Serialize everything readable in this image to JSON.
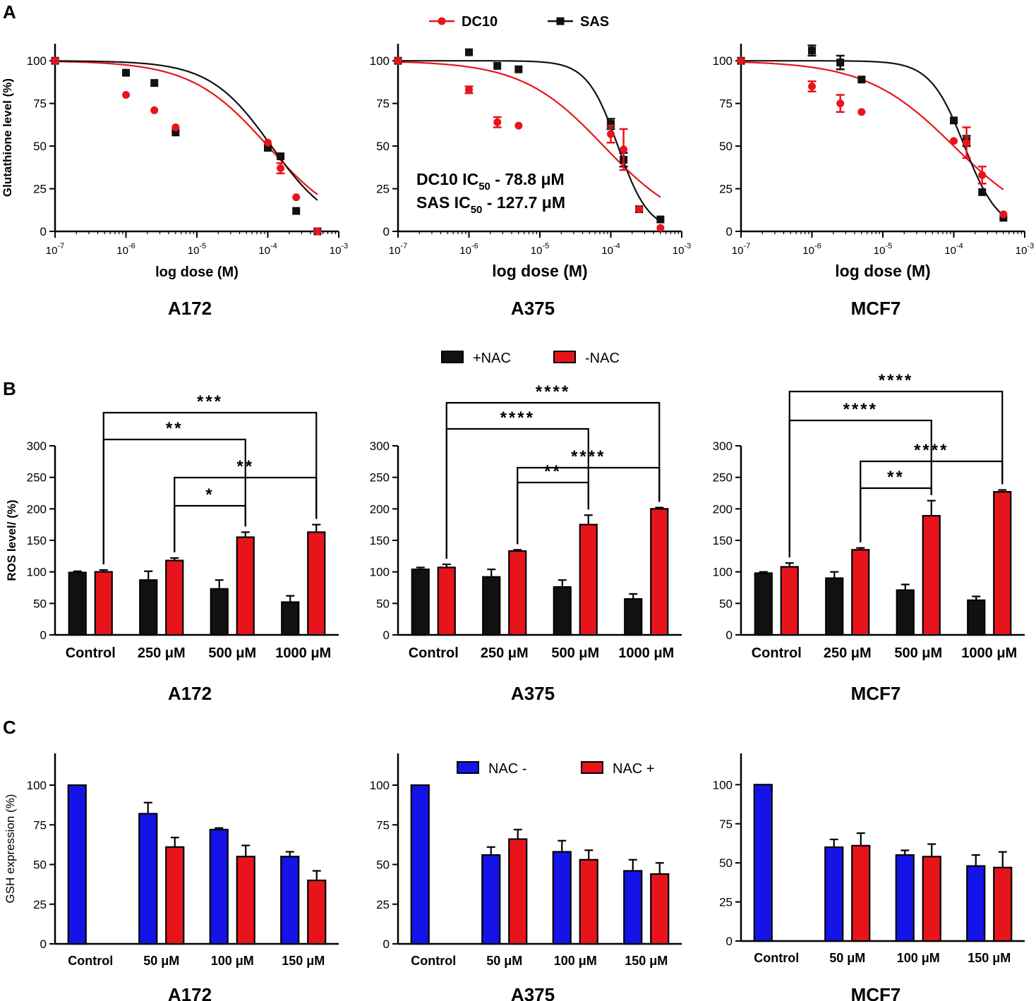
{
  "figure": {
    "panel_labels": [
      "A",
      "B",
      "C"
    ]
  },
  "colors": {
    "red": "#e8141c",
    "black": "#111111",
    "blue": "#1414e8"
  },
  "chart_data": [
    {
      "id": "A-A172",
      "type": "scatter",
      "title": "A172",
      "xlabel": "log dose (M)",
      "ylabel": "Glutathione level (%)",
      "xscale": "log",
      "xlim_exp": [
        -7,
        -3
      ],
      "ylim": [
        0,
        110
      ],
      "xticks": [
        "-7",
        "-6",
        "-5",
        "-4",
        "-3"
      ],
      "yticks": [
        0,
        25,
        50,
        75,
        100
      ],
      "legend": {
        "position": "top-center",
        "entries": [
          "DC10",
          "SAS"
        ]
      },
      "series": [
        {
          "name": "DC10",
          "color": "red",
          "marker": "circle",
          "x_exp": [
            -7,
            -6,
            -5.6,
            -5.3,
            -4,
            -3.82,
            -3.6,
            -3.3
          ],
          "y": [
            100,
            80,
            71,
            61,
            52,
            37,
            20,
            0
          ],
          "err": [
            0,
            0,
            0,
            0,
            0,
            3,
            0,
            0
          ],
          "fit": {
            "ic50_exp": -4.0,
            "hill": 0.8
          }
        },
        {
          "name": "SAS",
          "color": "black",
          "marker": "square",
          "x_exp": [
            -7,
            -6,
            -5.6,
            -5.3,
            -4,
            -3.82,
            -3.6,
            -3.3
          ],
          "y": [
            100,
            93,
            87,
            58,
            49,
            44,
            12,
            0
          ],
          "err": [
            0,
            0,
            0,
            0,
            0,
            0,
            0,
            0
          ],
          "fit": {
            "ic50_exp": -3.95,
            "hill": 1.0
          }
        }
      ]
    },
    {
      "id": "A-A375",
      "type": "scatter",
      "title": "A375",
      "xlabel": "log dose (M)",
      "ylabel": "",
      "xscale": "log",
      "xlim_exp": [
        -7,
        -3
      ],
      "ylim": [
        0,
        110
      ],
      "xticks": [
        "-7",
        "-6",
        "-5",
        "-4",
        "-3"
      ],
      "yticks": [
        0,
        25,
        50,
        75,
        100
      ],
      "annotations": [
        {
          "text": "DC10 IC",
          "sub": "50",
          "suffix": " - 78.8 μM"
        },
        {
          "text": "SAS IC",
          "sub": "50",
          "suffix": " - 127.7 μM"
        }
      ],
      "series": [
        {
          "name": "DC10",
          "color": "red",
          "marker": "circle",
          "x_exp": [
            -7,
            -6,
            -5.6,
            -5.3,
            -4,
            -3.82,
            -3.6,
            -3.3
          ],
          "y": [
            100,
            83,
            64,
            62,
            57,
            48,
            13,
            2
          ],
          "err": [
            0,
            2,
            3,
            0,
            5,
            12,
            0,
            0
          ],
          "fit": {
            "ic50_exp": -4.1,
            "hill": 0.75
          }
        },
        {
          "name": "SAS",
          "color": "black",
          "marker": "square",
          "x_exp": [
            -7,
            -6,
            -5.6,
            -5.3,
            -4,
            -3.82,
            -3.6,
            -3.3
          ],
          "y": [
            100,
            105,
            97,
            95,
            63,
            42,
            13,
            7
          ],
          "err": [
            0,
            0,
            0,
            0,
            3,
            4,
            0,
            0
          ],
          "fit": {
            "ic50_exp": -3.9,
            "hill": 2.0
          }
        }
      ]
    },
    {
      "id": "A-MCF7",
      "type": "scatter",
      "title": "MCF7",
      "xlabel": "log dose (M)",
      "ylabel": "",
      "xscale": "log",
      "xlim_exp": [
        -7,
        -3
      ],
      "ylim": [
        0,
        110
      ],
      "xticks": [
        "-7",
        "-6",
        "-5",
        "-4",
        "-3"
      ],
      "yticks": [
        0,
        25,
        50,
        75,
        100
      ],
      "series": [
        {
          "name": "DC10",
          "color": "red",
          "marker": "circle",
          "x_exp": [
            -7,
            -6,
            -5.6,
            -5.3,
            -4,
            -3.82,
            -3.6,
            -3.3
          ],
          "y": [
            100,
            85,
            75,
            70,
            53,
            52,
            33,
            10
          ],
          "err": [
            0,
            3,
            5,
            0,
            0,
            9,
            5,
            0
          ],
          "fit": {
            "ic50_exp": -4.0,
            "hill": 0.7
          }
        },
        {
          "name": "SAS",
          "color": "black",
          "marker": "square",
          "x_exp": [
            -7,
            -6,
            -5.6,
            -5.3,
            -4,
            -3.82,
            -3.6,
            -3.3
          ],
          "y": [
            100,
            106,
            99,
            89,
            65,
            53,
            23,
            8
          ],
          "err": [
            0,
            3,
            4,
            0,
            0,
            3,
            0,
            0
          ],
          "fit": {
            "ic50_exp": -3.85,
            "hill": 1.8
          }
        }
      ]
    },
    {
      "id": "B-A172",
      "type": "bar",
      "title": "A172",
      "ylabel": "ROS level/ (%)",
      "ylim": [
        0,
        300
      ],
      "yticks": [
        0,
        50,
        100,
        150,
        200,
        250,
        300
      ],
      "categories": [
        "Control",
        "250 μM",
        "500 μM",
        "1000 μM"
      ],
      "legend": {
        "position": "top-center",
        "entries": [
          "+NAC",
          "-NAC"
        ]
      },
      "series": [
        {
          "name": "+NAC",
          "color": "black",
          "values": [
            99,
            87,
            73,
            52
          ],
          "err": [
            2,
            14,
            14,
            10
          ]
        },
        {
          "name": "-NAC",
          "color": "red",
          "values": [
            100,
            118,
            155,
            163
          ],
          "err": [
            3,
            4,
            8,
            12
          ]
        }
      ],
      "significance": [
        {
          "from": [
            0,
            1
          ],
          "to": [
            3,
            1
          ],
          "label": "***",
          "level": 3
        },
        {
          "from": [
            0,
            1
          ],
          "to": [
            2,
            1
          ],
          "label": "**",
          "level": 2
        },
        {
          "from": [
            1,
            1
          ],
          "to": [
            3,
            1
          ],
          "label": "**",
          "level": 1
        },
        {
          "from": [
            1,
            1
          ],
          "to": [
            2,
            1
          ],
          "label": "*",
          "level": 0
        }
      ]
    },
    {
      "id": "B-A375",
      "type": "bar",
      "title": "A375",
      "ylabel": "",
      "ylim": [
        0,
        300
      ],
      "yticks": [
        0,
        50,
        100,
        150,
        200,
        250,
        300
      ],
      "categories": [
        "Control",
        "250 μM",
        "500 μM",
        "1000 μM"
      ],
      "series": [
        {
          "name": "+NAC",
          "color": "black",
          "values": [
            104,
            92,
            76,
            57
          ],
          "err": [
            3,
            12,
            11,
            8
          ]
        },
        {
          "name": "-NAC",
          "color": "red",
          "values": [
            107,
            133,
            175,
            200
          ],
          "err": [
            5,
            2,
            15,
            2
          ]
        }
      ],
      "significance": [
        {
          "from": [
            0,
            1
          ],
          "to": [
            3,
            1
          ],
          "label": "****",
          "level": 3
        },
        {
          "from": [
            0,
            1
          ],
          "to": [
            2,
            1
          ],
          "label": "****",
          "level": 2
        },
        {
          "from": [
            1,
            1
          ],
          "to": [
            3,
            1
          ],
          "label": "****",
          "level": 1
        },
        {
          "from": [
            1,
            1
          ],
          "to": [
            2,
            1
          ],
          "label": "**",
          "level": 0
        }
      ]
    },
    {
      "id": "B-MCF7",
      "type": "bar",
      "title": "MCF7",
      "ylabel": "",
      "ylim": [
        0,
        300
      ],
      "yticks": [
        0,
        50,
        100,
        150,
        200,
        250,
        300
      ],
      "categories": [
        "Control",
        "250 μM",
        "500 μM",
        "1000 μM"
      ],
      "series": [
        {
          "name": "+NAC",
          "color": "black",
          "values": [
            98,
            90,
            71,
            55
          ],
          "err": [
            2,
            10,
            9,
            6
          ]
        },
        {
          "name": "-NAC",
          "color": "red",
          "values": [
            108,
            135,
            189,
            227
          ],
          "err": [
            6,
            3,
            24,
            3
          ]
        }
      ],
      "significance": [
        {
          "from": [
            0,
            1
          ],
          "to": [
            3,
            1
          ],
          "label": "****",
          "level": 3
        },
        {
          "from": [
            0,
            1
          ],
          "to": [
            2,
            1
          ],
          "label": "****",
          "level": 2
        },
        {
          "from": [
            1,
            1
          ],
          "to": [
            3,
            1
          ],
          "label": "****",
          "level": 1
        },
        {
          "from": [
            1,
            1
          ],
          "to": [
            2,
            1
          ],
          "label": "**",
          "level": 0
        }
      ]
    },
    {
      "id": "C-A172",
      "type": "bar",
      "title": "A172",
      "ylabel": "GSH expression (%)",
      "ylim": [
        0,
        120
      ],
      "yticks": [
        0,
        25,
        50,
        75,
        100
      ],
      "categories": [
        "Control",
        "50 μM",
        "100 μM",
        "150 μM"
      ],
      "series": [
        {
          "name": "NAC -",
          "color": "blue",
          "values": [
            100,
            82,
            72,
            55
          ],
          "err": [
            0,
            7,
            1,
            3
          ]
        },
        {
          "name": "NAC +",
          "color": "red",
          "values": [
            null,
            61,
            55,
            40
          ],
          "err": [
            0,
            6,
            7,
            6
          ]
        }
      ]
    },
    {
      "id": "C-A375",
      "type": "bar",
      "title": "A375",
      "ylabel": "",
      "ylim": [
        0,
        120
      ],
      "yticks": [
        0,
        25,
        50,
        75,
        100
      ],
      "categories": [
        "Control",
        "50 μM",
        "100 μM",
        "150 μM"
      ],
      "legend": {
        "position": "top-center",
        "entries": [
          "NAC -",
          "NAC +"
        ]
      },
      "series": [
        {
          "name": "NAC -",
          "color": "blue",
          "values": [
            100,
            56,
            58,
            46
          ],
          "err": [
            0,
            5,
            7,
            7
          ]
        },
        {
          "name": "NAC +",
          "color": "red",
          "values": [
            null,
            66,
            53,
            44
          ],
          "err": [
            0,
            6,
            6,
            7
          ]
        }
      ]
    },
    {
      "id": "C-MCF7",
      "type": "bar",
      "title": "MCF7",
      "ylabel": "",
      "ylim": [
        0,
        120
      ],
      "yticks": [
        0,
        25,
        50,
        75,
        100
      ],
      "categories": [
        "Control",
        "50 μM",
        "100 μM",
        "150 μM"
      ],
      "series": [
        {
          "name": "NAC -",
          "color": "blue",
          "values": [
            100,
            60,
            55,
            48
          ],
          "err": [
            0,
            5,
            3,
            7
          ]
        },
        {
          "name": "NAC +",
          "color": "red",
          "values": [
            null,
            61,
            54,
            47
          ],
          "err": [
            0,
            8,
            8,
            10
          ]
        }
      ]
    }
  ]
}
